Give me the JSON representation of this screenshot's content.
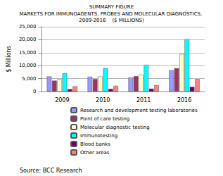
{
  "chart_data": {
    "type": "bar",
    "subtitle": "SUMMARY FIGURE",
    "title": "MARKETS FOR IMMUNOAGENTS, PROBES AND MOLECULAR DIAGNOSTICS, 2009-2016    ($ MILLIONS)",
    "y_label": "$ Millions",
    "categories": [
      "2009",
      "2010",
      "2011",
      "2016"
    ],
    "series": [
      {
        "name": "Research and development testing laboratories",
        "color": "#9999ff",
        "values": [
          5800,
          5700,
          5400,
          8200
        ]
      },
      {
        "name": "Point of care testing",
        "color": "#993366",
        "values": [
          4200,
          4800,
          5900,
          9000
        ]
      },
      {
        "name": "Molecular diagnostic testing",
        "color": "#ffffcc",
        "values": [
          4800,
          5800,
          6500,
          14500
        ]
      },
      {
        "name": "Immunotesting",
        "color": "#00ffff",
        "values": [
          7000,
          9000,
          10300,
          20200
        ]
      },
      {
        "name": "Blood banks",
        "color": "#660066",
        "values": [
          900,
          1000,
          1100,
          1800
        ]
      },
      {
        "name": "Other areas",
        "color": "#ff8080",
        "values": [
          2000,
          2200,
          2500,
          4800
        ]
      }
    ],
    "ylim": [
      0,
      25000
    ],
    "yticks": [
      0,
      {
        "value": 5000,
        "label": "5,000"
      },
      {
        "value": 10000,
        "label": "10,000"
      },
      {
        "value": 15000,
        "label": "15,000"
      },
      {
        "value": 20000,
        "label": "20,000"
      },
      {
        "value": 25000,
        "label": "25,000"
      }
    ],
    "grid": true,
    "legend": "bottom",
    "annotations": [
      "Source: BCC Research"
    ]
  }
}
